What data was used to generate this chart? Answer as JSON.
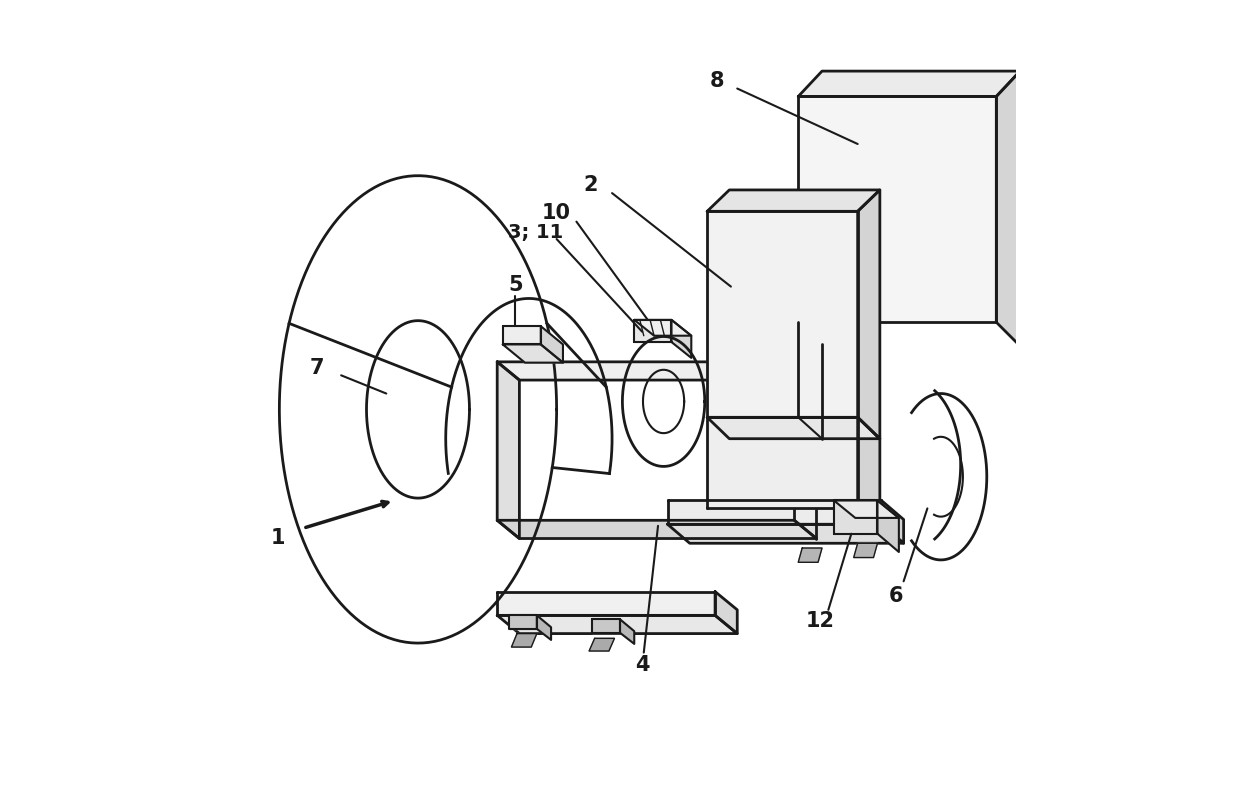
{
  "figure_width": 12.4,
  "figure_height": 7.95,
  "dpi": 100,
  "background_color": "#ffffff",
  "line_color": "#1a1a1a",
  "line_width": 1.5
}
